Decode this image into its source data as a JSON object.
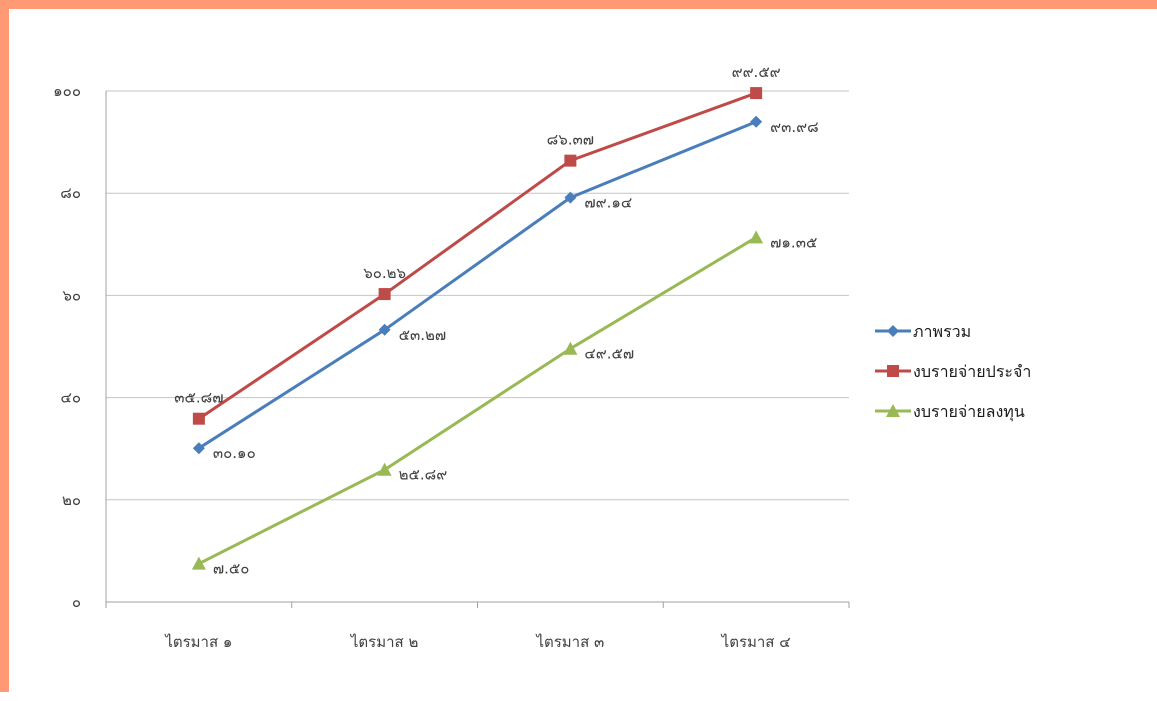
{
  "chart_data": {
    "type": "line",
    "categories": [
      "ไตรมาส ๑",
      "ไตรมาส ๒",
      "ไตรมาส ๓",
      "ไตรมาส ๔"
    ],
    "ylim": [
      0,
      100
    ],
    "y_ticks": [
      0,
      20,
      40,
      60,
      80,
      100
    ],
    "y_tick_labels": [
      "๐",
      "๒๐",
      "๔๐",
      "๖๐",
      "๘๐",
      "๑๐๐"
    ],
    "grid": true,
    "legend_position": "right",
    "series": [
      {
        "name": "ภาพรวม",
        "values": [
          30.1,
          53.27,
          79.14,
          93.98
        ],
        "labels": [
          "๓๐.๑๐",
          "๕๓.๒๗",
          "๗๙.๑๔",
          "๙๓.๙๘"
        ],
        "color": "#4a7ebb",
        "marker": "diamond",
        "label_position": "below-right"
      },
      {
        "name": "งบรายจ่ายประจำ",
        "values": [
          35.87,
          60.26,
          86.37,
          99.59
        ],
        "labels": [
          "๓๕.๘๗",
          "๖๐.๒๖",
          "๘๖.๓๗",
          "๙๙.๕๙"
        ],
        "color": "#be4b48",
        "marker": "square",
        "label_position": "above"
      },
      {
        "name": "งบรายจ่ายลงทุน",
        "values": [
          7.5,
          25.89,
          49.57,
          71.35
        ],
        "labels": [
          "๗.๕๐",
          "๒๕.๘๙",
          "๔๙.๕๗",
          "๗๑.๓๕"
        ],
        "color": "#98b954",
        "marker": "triangle",
        "label_position": "right"
      }
    ],
    "colors": {
      "frame": "#ff9a75",
      "grid": "#c6c6c6",
      "axis": "#a0a0a0"
    }
  }
}
